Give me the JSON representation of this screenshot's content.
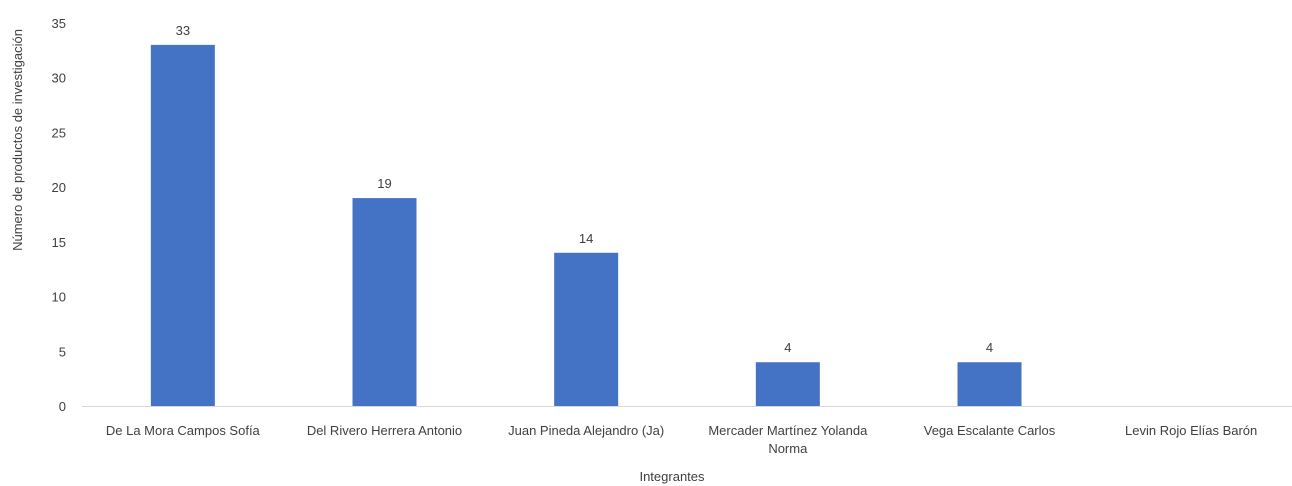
{
  "chart_data": {
    "type": "bar",
    "categories": [
      "De La Mora Campos Sofía",
      "Del Rivero Herrera Antonio",
      "Juan Pineda Alejandro (Ja)",
      "Mercader Martínez Yolanda Norma",
      "Vega Escalante Carlos",
      "Levin Rojo Elías Barón"
    ],
    "category_lines": [
      [
        "De La Mora Campos Sofía"
      ],
      [
        "Del Rivero Herrera Antonio"
      ],
      [
        "Juan Pineda Alejandro (Ja)"
      ],
      [
        "Mercader Martínez Yolanda",
        "Norma"
      ],
      [
        "Vega Escalante Carlos"
      ],
      [
        "Levin Rojo Elías Barón"
      ]
    ],
    "values": [
      33,
      19,
      14,
      4,
      4,
      0
    ],
    "data_labels": [
      "33",
      "19",
      "14",
      "4",
      "4",
      ""
    ],
    "xlabel": "Integrantes",
    "ylabel": "Número de productos de investigación",
    "ylim": [
      0,
      35
    ],
    "yticks": [
      0,
      5,
      10,
      15,
      20,
      25,
      30,
      35
    ],
    "grid": false,
    "legend": "none",
    "bar_color": "#4472C4",
    "axis_color": "#D9D9D9",
    "text_color": "#404040"
  }
}
